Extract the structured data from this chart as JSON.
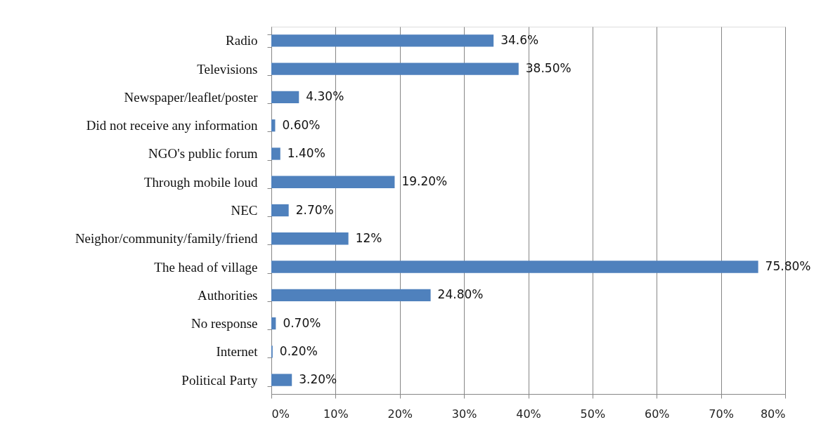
{
  "chart_data": {
    "type": "bar",
    "orientation": "horizontal",
    "categories": [
      "Radio",
      "Televisions",
      "Newspaper/leaflet/poster",
      "Did not receive any information",
      "NGO's public forum",
      "Through mobile loud",
      "NEC",
      "Neighor/community/family/friend",
      "The head of village",
      "Authorities",
      "No response",
      "Internet",
      "Political Party"
    ],
    "values": [
      34.6,
      38.5,
      4.3,
      0.6,
      1.4,
      19.2,
      2.7,
      12,
      75.8,
      24.8,
      0.7,
      0.2,
      3.2
    ],
    "value_labels": [
      "34.6%",
      "38.50%",
      "4.30%",
      "0.60%",
      "1.40%",
      "19.20%",
      "2.70%",
      "12%",
      "75.80%",
      "24.80%",
      "0.70%",
      "0.20%",
      "3.20%"
    ],
    "color": "#4f81bd",
    "xlim": [
      0,
      80
    ],
    "xticks": [
      {
        "value": 0,
        "label": "0%"
      },
      {
        "value": 10,
        "label": "10%"
      },
      {
        "value": 20,
        "label": "20%"
      },
      {
        "value": 30,
        "label": "30%"
      },
      {
        "value": 40,
        "label": "40%"
      },
      {
        "value": 50,
        "label": "50%"
      },
      {
        "value": 60,
        "label": "60%"
      },
      {
        "value": 70,
        "label": "70%"
      },
      {
        "value": 80,
        "label": "80%"
      }
    ],
    "grid": "x"
  }
}
